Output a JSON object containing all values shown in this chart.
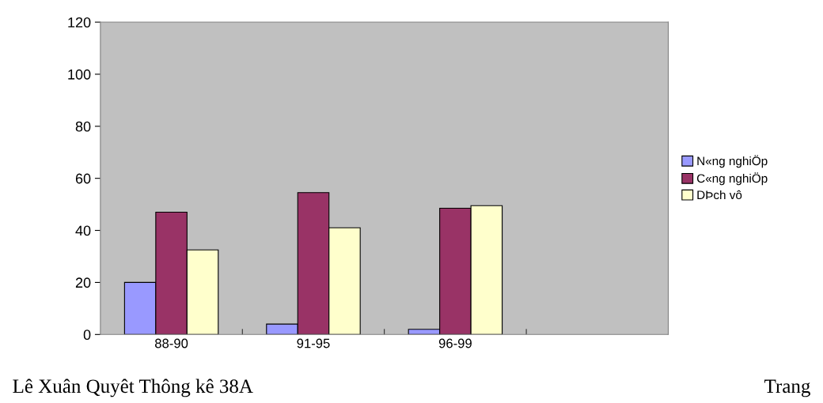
{
  "chart_data": {
    "type": "bar",
    "categories": [
      "88-90",
      "91-95",
      "96-99",
      null
    ],
    "series": [
      {
        "name": "N«ng nghiÖp",
        "color": "#9999ff",
        "values": [
          20,
          4,
          2,
          null
        ]
      },
      {
        "name": "C«ng nghiÖp",
        "color": "#993366",
        "values": [
          47,
          54.5,
          48.5,
          null
        ]
      },
      {
        "name": "DÞch vô",
        "color": "#ffffcc",
        "values": [
          32.5,
          41,
          49.5,
          null
        ]
      }
    ],
    "ylim": [
      0,
      120
    ],
    "yticks": [
      0,
      20,
      40,
      60,
      80,
      100,
      120
    ],
    "grid": false,
    "legend": "right",
    "annotations": [
      "Lê Xuân Quyêt Thông kê 38A",
      "Trang"
    ]
  }
}
